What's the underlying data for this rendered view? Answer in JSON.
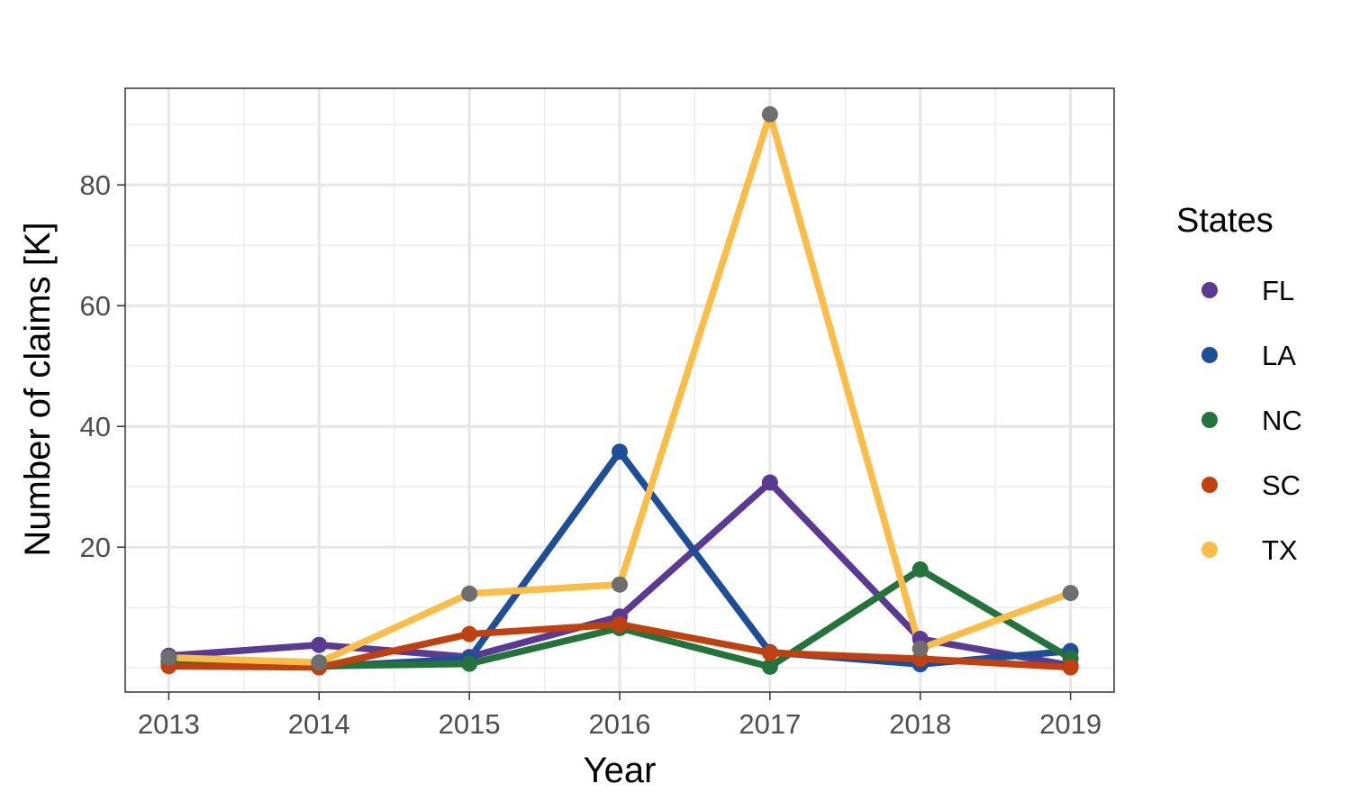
{
  "chart_data": {
    "type": "line",
    "title": "",
    "xlabel": "Year",
    "ylabel": "Number of claims [K]",
    "x": [
      2013,
      2014,
      2015,
      2016,
      2017,
      2018,
      2019
    ],
    "x_ticks": [
      "2013",
      "2014",
      "2015",
      "2016",
      "2017",
      "2018",
      "2019"
    ],
    "y_ticks": [
      "20",
      "40",
      "60",
      "80"
    ],
    "xlim": [
      2012.71,
      2019.29
    ],
    "ylim": [
      -4,
      96
    ],
    "grid": true,
    "legend_title": "States",
    "legend_position": "right",
    "series": [
      {
        "name": "FL",
        "color": "#5b3a94",
        "values": [
          2.0,
          3.8,
          1.8,
          8.5,
          30.7,
          4.8,
          0.4
        ]
      },
      {
        "name": "LA",
        "color": "#1f4e98",
        "values": [
          1.0,
          0.2,
          1.5,
          35.8,
          2.6,
          0.6,
          2.8
        ]
      },
      {
        "name": "NC",
        "color": "#23733a",
        "values": [
          1.0,
          0.3,
          0.7,
          6.6,
          0.2,
          16.3,
          1.6
        ]
      },
      {
        "name": "SC",
        "color": "#c1400f",
        "values": [
          0.3,
          0.1,
          5.6,
          7.2,
          2.5,
          1.5,
          0.1
        ]
      },
      {
        "name": "TX",
        "color": "#fbbd48",
        "values": [
          1.7,
          0.9,
          12.3,
          13.8,
          91.7,
          3.2,
          12.4
        ]
      }
    ],
    "overlay_point_color": "#6e6e6e",
    "overlay_series": "TX"
  }
}
